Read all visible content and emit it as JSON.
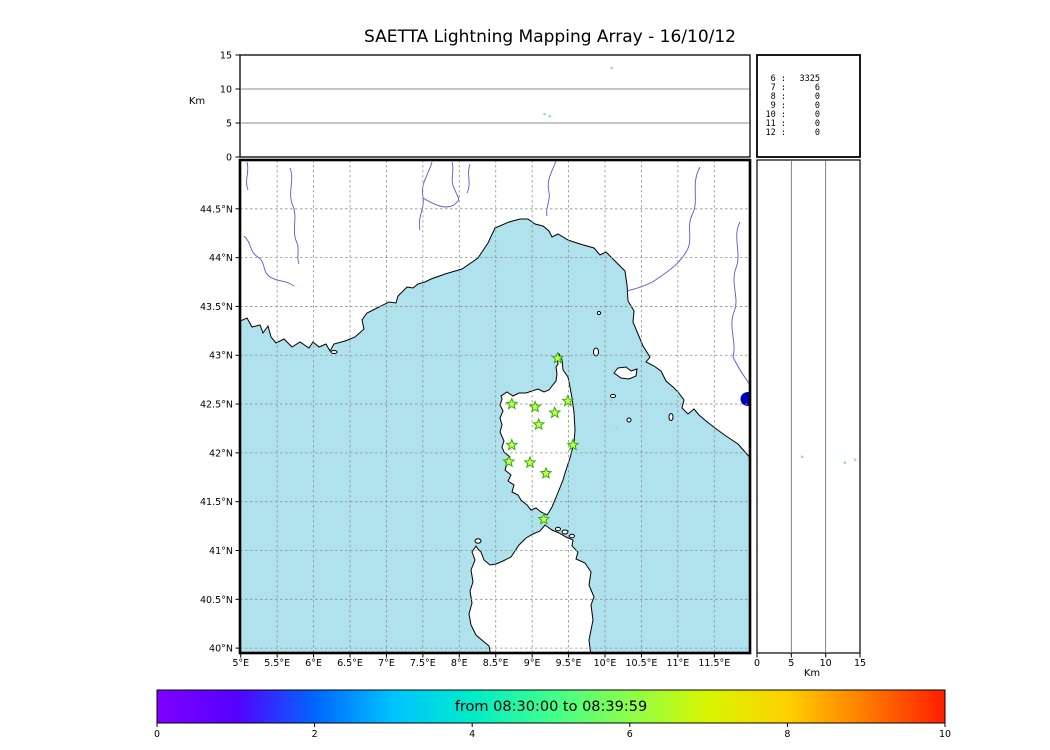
{
  "title": "SAETTA Lightning Mapping Array - 16/10/12",
  "colors": {
    "sea": "#b0e2ee",
    "land": "#ffffff",
    "coast": "#000000",
    "river": "#5e56cc",
    "grid": "#909090",
    "star_fill": "#ccf95c",
    "star_stroke": "#2db200",
    "dot": "#8fd8ea",
    "lake": "#0000bb",
    "highlight": "#ff0000"
  },
  "alt_axis": {
    "label": "Km",
    "ticks": [
      0,
      5,
      10,
      15
    ],
    "grid": [
      5,
      10
    ],
    "max": 15
  },
  "station_counts": {
    "rows": [
      {
        "station": "6",
        "count": "3325",
        "highlight": false
      },
      {
        "station": "7",
        "count": "6",
        "highlight": true
      },
      {
        "station": "8",
        "count": "0",
        "highlight": false
      },
      {
        "station": "9",
        "count": "0",
        "highlight": false
      },
      {
        "station": "10",
        "count": "0",
        "highlight": false
      },
      {
        "station": "11",
        "count": "0",
        "highlight": false
      },
      {
        "station": "12",
        "count": "0",
        "highlight": false
      }
    ]
  },
  "map": {
    "lon_values": [
      5,
      5.5,
      6,
      6.5,
      7,
      7.5,
      8,
      8.5,
      9,
      9.5,
      10,
      10.5,
      11,
      11.5
    ],
    "lon_labels": [
      "5°E",
      "5.5°E",
      "6°E",
      "6.5°E",
      "7°E",
      "7.5°E",
      "8°E",
      "8.5°E",
      "9°E",
      "9.5°E",
      "10°E",
      "10.5°E",
      "11°E",
      "11.5°E"
    ],
    "lat_values": [
      44.5,
      44,
      43.5,
      43,
      42.5,
      42,
      41.5,
      41,
      40.5,
      40
    ],
    "lat_labels": [
      "44.5°N",
      "44°N",
      "43.5°N",
      "43°N",
      "42.5°N",
      "42°N",
      "41.5°N",
      "41°N",
      "40.5°N",
      "40°N"
    ],
    "lon_grid": [
      5.5,
      6,
      6.5,
      7,
      7.5,
      8,
      8.5,
      9,
      9.5,
      10,
      10.5,
      11,
      11.5
    ],
    "lat_grid": [
      44.5,
      44,
      43.5,
      43,
      42.5,
      42,
      41.5,
      41,
      40.5,
      40
    ]
  },
  "stations": [
    [
      9.35,
      42.97
    ],
    [
      8.72,
      42.5
    ],
    [
      9.04,
      42.47
    ],
    [
      9.31,
      42.41
    ],
    [
      9.49,
      42.53
    ],
    [
      9.09,
      42.29
    ],
    [
      8.72,
      42.08
    ],
    [
      9.56,
      42.08
    ],
    [
      8.68,
      41.91
    ],
    [
      8.97,
      41.9
    ],
    [
      9.19,
      41.79
    ],
    [
      9.16,
      41.32
    ]
  ],
  "sources": {
    "alt_lon": [
      [
        10.09,
        13.1
      ],
      [
        9.17,
        6.3
      ],
      [
        9.24,
        6.0
      ]
    ],
    "plan": [
      [
        10.16,
        42.26
      ],
      [
        10.08,
        42.54
      ]
    ],
    "alt_lat": [
      [
        6.6,
        41.96
      ],
      [
        12.8,
        41.9
      ],
      [
        14.3,
        41.93
      ]
    ]
  },
  "colorbar": {
    "label": "from 08:30:00 to 08:39:59",
    "ticks": [
      0,
      2,
      4,
      6,
      8,
      10
    ],
    "min": 0,
    "max": 10,
    "gradient": [
      "#8000ff",
      "#5500ff",
      "#0066ff",
      "#00c3ff",
      "#00ecc8",
      "#40ff8c",
      "#8cff4a",
      "#d8f500",
      "#ffd000",
      "#ff7a00",
      "#ff1e00"
    ]
  },
  "chart_data": [
    {
      "type": "scatter",
      "panel": "altitude-vs-longitude",
      "ylabel": "Km",
      "xlim": [
        5,
        12
      ],
      "ylim": [
        0,
        15
      ],
      "yticks": [
        0,
        5,
        10,
        15
      ],
      "grid": "horizontal at 5 and 10 km",
      "points": [
        [
          10.09,
          13.1
        ],
        [
          9.17,
          6.3
        ],
        [
          9.24,
          6.0
        ]
      ]
    },
    {
      "type": "table",
      "panel": "sources-per-station-count",
      "columns": [
        "stations",
        "sources"
      ],
      "rows": [
        [
          6,
          3325
        ],
        [
          7,
          6
        ],
        [
          8,
          0
        ],
        [
          9,
          0
        ],
        [
          10,
          0
        ],
        [
          11,
          0
        ],
        [
          12,
          0
        ]
      ],
      "highlighted_row": 7
    },
    {
      "type": "scatter",
      "panel": "plan-view-map",
      "xlabel": "Longitude",
      "ylabel": "Latitude",
      "xlim": [
        5,
        12
      ],
      "ylim": [
        40,
        45
      ],
      "xticks": [
        5,
        5.5,
        6,
        6.5,
        7,
        7.5,
        8,
        8.5,
        9,
        9.5,
        10,
        10.5,
        11,
        11.5
      ],
      "yticks": [
        40,
        40.5,
        41,
        41.5,
        42,
        42.5,
        43,
        43.5,
        44,
        44.5
      ],
      "grid": "dashed 0.5 degree",
      "stations_lon_lat": [
        [
          9.35,
          42.97
        ],
        [
          8.72,
          42.5
        ],
        [
          9.04,
          42.47
        ],
        [
          9.31,
          42.41
        ],
        [
          9.49,
          42.53
        ],
        [
          9.09,
          42.29
        ],
        [
          8.72,
          42.08
        ],
        [
          9.56,
          42.08
        ],
        [
          8.68,
          41.91
        ],
        [
          8.97,
          41.9
        ],
        [
          9.19,
          41.79
        ],
        [
          9.16,
          41.32
        ]
      ],
      "points": [
        [
          10.16,
          42.26
        ],
        [
          10.08,
          42.54
        ]
      ]
    },
    {
      "type": "scatter",
      "panel": "altitude-vs-latitude",
      "xlabel": "Km",
      "xlim": [
        0,
        15
      ],
      "ylim": [
        40,
        45
      ],
      "xticks": [
        0,
        5,
        10,
        15
      ],
      "grid": "vertical at 5 and 10 km",
      "points": [
        [
          6.6,
          41.96
        ],
        [
          12.8,
          41.9
        ],
        [
          14.3,
          41.93
        ]
      ]
    },
    {
      "type": "colorbar",
      "label": "from 08:30:00 to 08:39:59",
      "range": [
        0,
        10
      ],
      "ticks": [
        0,
        2,
        4,
        6,
        8,
        10
      ]
    }
  ]
}
